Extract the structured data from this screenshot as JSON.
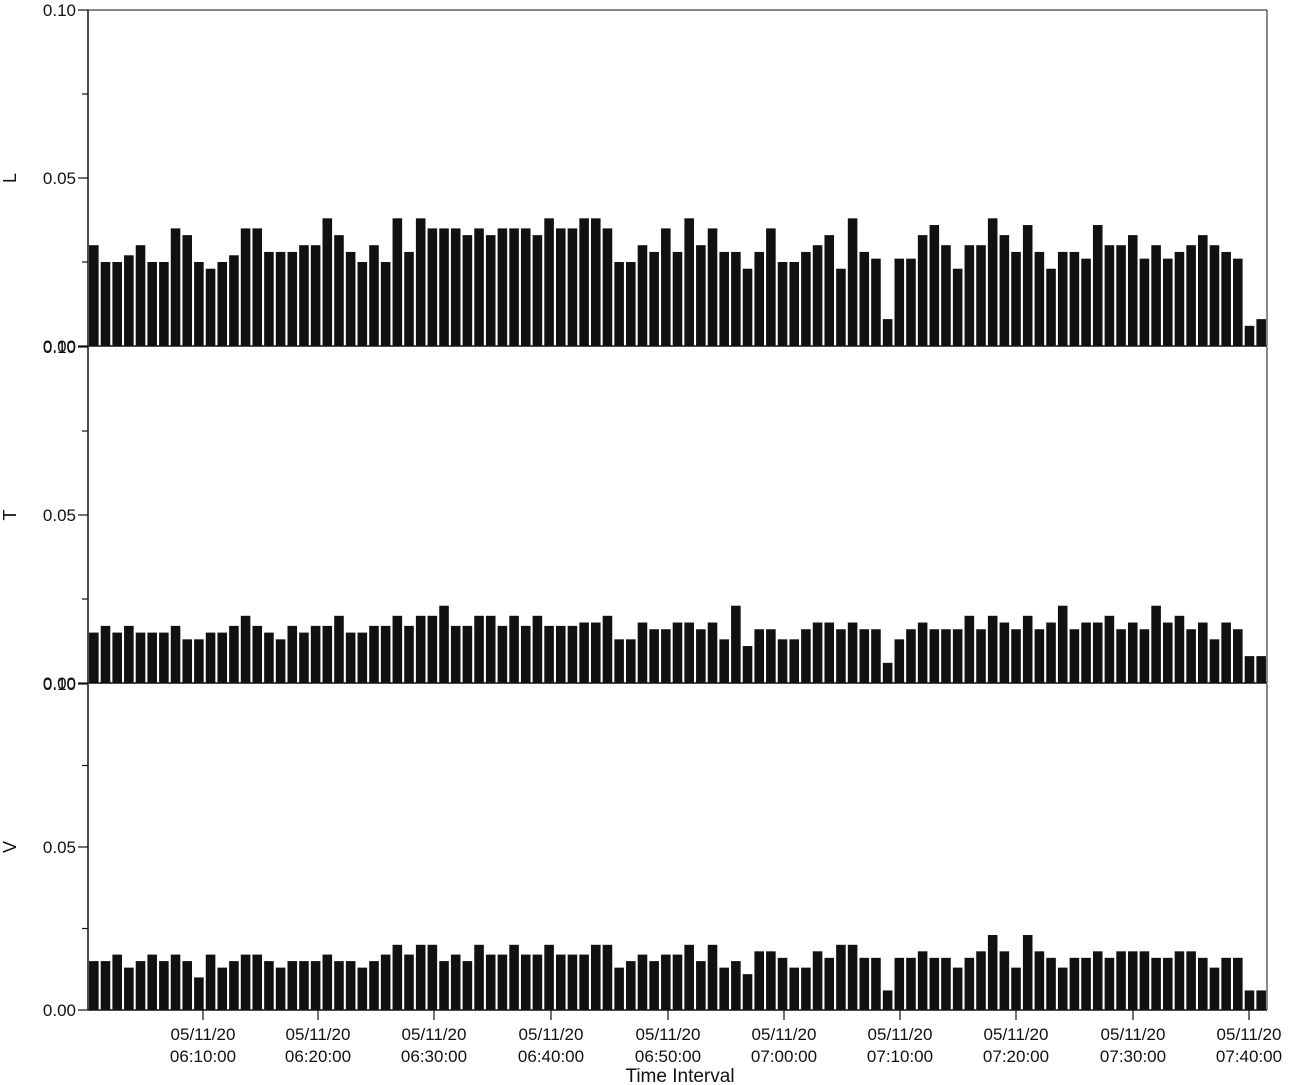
{
  "chart_data": {
    "type": "bar",
    "xlabel": "Time Interval",
    "tick_labels": [
      {
        "date": "05/11/20",
        "time": "06:10:00"
      },
      {
        "date": "05/11/20",
        "time": "06:20:00"
      },
      {
        "date": "05/11/20",
        "time": "06:30:00"
      },
      {
        "date": "05/11/20",
        "time": "06:40:00"
      },
      {
        "date": "05/11/20",
        "time": "06:50:00"
      },
      {
        "date": "05/11/20",
        "time": "07:00:00"
      },
      {
        "date": "05/11/20",
        "time": "07:10:00"
      },
      {
        "date": "05/11/20",
        "time": "07:20:00"
      },
      {
        "date": "05/11/20",
        "time": "07:30:00"
      },
      {
        "date": "05/11/20",
        "time": "07:40:00"
      }
    ],
    "bar_color": "#111111",
    "panels": [
      {
        "ylabel": "L",
        "ylim": [
          0,
          0.1
        ],
        "yticks": [
          "0.00",
          "0.05",
          "0.10"
        ],
        "values": [
          0.03,
          0.025,
          0.025,
          0.027,
          0.03,
          0.025,
          0.025,
          0.035,
          0.033,
          0.025,
          0.023,
          0.025,
          0.027,
          0.035,
          0.035,
          0.028,
          0.028,
          0.028,
          0.03,
          0.03,
          0.038,
          0.033,
          0.028,
          0.025,
          0.03,
          0.025,
          0.038,
          0.028,
          0.038,
          0.035,
          0.035,
          0.035,
          0.033,
          0.035,
          0.033,
          0.035,
          0.035,
          0.035,
          0.033,
          0.038,
          0.035,
          0.035,
          0.038,
          0.038,
          0.035,
          0.025,
          0.025,
          0.03,
          0.028,
          0.035,
          0.028,
          0.038,
          0.03,
          0.035,
          0.028,
          0.028,
          0.023,
          0.028,
          0.035,
          0.025,
          0.025,
          0.028,
          0.03,
          0.033,
          0.023,
          0.038,
          0.028,
          0.026,
          0.008,
          0.026,
          0.026,
          0.033,
          0.036,
          0.03,
          0.023,
          0.03,
          0.03,
          0.038,
          0.033,
          0.028,
          0.036,
          0.028,
          0.023,
          0.028,
          0.028,
          0.026,
          0.036,
          0.03,
          0.03,
          0.033,
          0.026,
          0.03,
          0.026,
          0.028,
          0.03,
          0.033,
          0.03,
          0.028,
          0.026,
          0.006,
          0.008
        ]
      },
      {
        "ylabel": "T",
        "ylim": [
          0,
          0.1
        ],
        "yticks": [
          "0.00",
          "0.05",
          "0.10"
        ],
        "values": [
          0.015,
          0.017,
          0.015,
          0.017,
          0.015,
          0.015,
          0.015,
          0.017,
          0.013,
          0.013,
          0.015,
          0.015,
          0.017,
          0.02,
          0.017,
          0.015,
          0.013,
          0.017,
          0.015,
          0.017,
          0.017,
          0.02,
          0.015,
          0.015,
          0.017,
          0.017,
          0.02,
          0.017,
          0.02,
          0.02,
          0.023,
          0.017,
          0.017,
          0.02,
          0.02,
          0.017,
          0.02,
          0.017,
          0.02,
          0.017,
          0.017,
          0.017,
          0.018,
          0.018,
          0.02,
          0.013,
          0.013,
          0.018,
          0.016,
          0.016,
          0.018,
          0.018,
          0.016,
          0.018,
          0.013,
          0.023,
          0.011,
          0.016,
          0.016,
          0.013,
          0.013,
          0.016,
          0.018,
          0.018,
          0.016,
          0.018,
          0.016,
          0.016,
          0.006,
          0.013,
          0.016,
          0.018,
          0.016,
          0.016,
          0.016,
          0.02,
          0.016,
          0.02,
          0.018,
          0.016,
          0.02,
          0.016,
          0.018,
          0.023,
          0.016,
          0.018,
          0.018,
          0.02,
          0.016,
          0.018,
          0.016,
          0.023,
          0.018,
          0.02,
          0.016,
          0.018,
          0.013,
          0.018,
          0.016,
          0.008,
          0.008
        ]
      },
      {
        "ylabel": "V",
        "ylim": [
          0,
          0.1
        ],
        "yticks": [
          "0.00",
          "0.05",
          "0.10"
        ],
        "values": [
          0.015,
          0.015,
          0.017,
          0.013,
          0.015,
          0.017,
          0.015,
          0.017,
          0.015,
          0.01,
          0.017,
          0.013,
          0.015,
          0.017,
          0.017,
          0.015,
          0.013,
          0.015,
          0.015,
          0.015,
          0.017,
          0.015,
          0.015,
          0.013,
          0.015,
          0.017,
          0.02,
          0.017,
          0.02,
          0.02,
          0.015,
          0.017,
          0.015,
          0.02,
          0.017,
          0.017,
          0.02,
          0.017,
          0.017,
          0.02,
          0.017,
          0.017,
          0.017,
          0.02,
          0.02,
          0.013,
          0.015,
          0.017,
          0.015,
          0.017,
          0.017,
          0.02,
          0.015,
          0.02,
          0.013,
          0.015,
          0.011,
          0.018,
          0.018,
          0.016,
          0.013,
          0.013,
          0.018,
          0.016,
          0.02,
          0.02,
          0.016,
          0.016,
          0.006,
          0.016,
          0.016,
          0.018,
          0.016,
          0.016,
          0.013,
          0.016,
          0.018,
          0.023,
          0.018,
          0.013,
          0.023,
          0.018,
          0.016,
          0.013,
          0.016,
          0.016,
          0.018,
          0.016,
          0.018,
          0.018,
          0.018,
          0.016,
          0.016,
          0.018,
          0.018,
          0.016,
          0.013,
          0.016,
          0.016,
          0.006,
          0.006
        ]
      }
    ]
  }
}
